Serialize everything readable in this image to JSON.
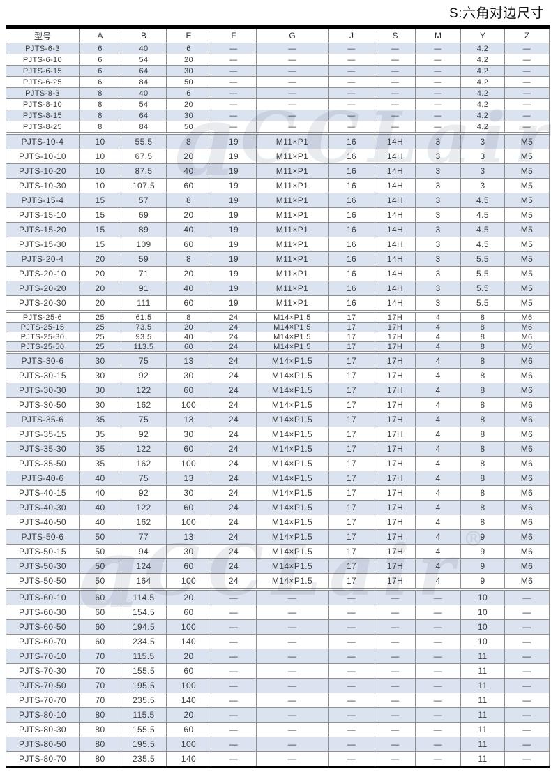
{
  "title": "S:六角对边尺寸",
  "watermark": {
    "glyph": "a",
    "text": "CCLair",
    "reg": "®"
  },
  "colors": {
    "row_stripe": "#dce3f0",
    "grid_border": "#8f8f8f",
    "group_separator": "#000000",
    "text": "#3c3c3c",
    "watermark": "#b6bcc8"
  },
  "table": {
    "columns": [
      {
        "key": "model",
        "label": "型号"
      },
      {
        "key": "A",
        "label": "A"
      },
      {
        "key": "B",
        "label": "B"
      },
      {
        "key": "E",
        "label": "E"
      },
      {
        "key": "F",
        "label": "F"
      },
      {
        "key": "G",
        "label": "G"
      },
      {
        "key": "J",
        "label": "J"
      },
      {
        "key": "S",
        "label": "S"
      },
      {
        "key": "M",
        "label": "M"
      },
      {
        "key": "Y",
        "label": "Y"
      },
      {
        "key": "Z",
        "label": "Z"
      }
    ],
    "groups": [
      {
        "name": "g1",
        "shade_first_row": true,
        "rows": [
          [
            "PJTS-6-3",
            "6",
            "40",
            "6",
            "—",
            "—",
            "—",
            "—",
            "—",
            "4.2",
            "—"
          ],
          [
            "PJTS-6-10",
            "6",
            "54",
            "20",
            "—",
            "—",
            "—",
            "—",
            "—",
            "4.2",
            "—"
          ],
          [
            "PJTS-6-15",
            "6",
            "64",
            "30",
            "—",
            "—",
            "—",
            "—",
            "—",
            "4.2",
            "—"
          ],
          [
            "PJTS-6-25",
            "6",
            "84",
            "50",
            "—",
            "—",
            "—",
            "—",
            "—",
            "4.2",
            "—"
          ],
          [
            "PJTS-8-3",
            "8",
            "40",
            "6",
            "—",
            "—",
            "—",
            "—",
            "—",
            "4.2",
            "—"
          ],
          [
            "PJTS-8-10",
            "8",
            "54",
            "20",
            "—",
            "—",
            "—",
            "—",
            "—",
            "4.2",
            "—"
          ],
          [
            "PJTS-8-15",
            "8",
            "64",
            "30",
            "—",
            "—",
            "—",
            "—",
            "—",
            "4.2",
            "—"
          ],
          [
            "PJTS-8-25",
            "8",
            "84",
            "50",
            "—",
            "—",
            "—",
            "—",
            "—",
            "4.2",
            "—"
          ]
        ]
      },
      {
        "name": "g2",
        "shade_first_row": true,
        "rows": [
          [
            "PJTS-10-4",
            "10",
            "55.5",
            "8",
            "19",
            "M11×P1",
            "16",
            "14H",
            "3",
            "3",
            "M5"
          ],
          [
            "PJTS-10-10",
            "10",
            "67.5",
            "20",
            "19",
            "M11×P1",
            "16",
            "14H",
            "3",
            "3",
            "M5"
          ],
          [
            "PJTS-10-20",
            "10",
            "87.5",
            "40",
            "19",
            "M11×P1",
            "16",
            "14H",
            "3",
            "3",
            "M5"
          ],
          [
            "PJTS-10-30",
            "10",
            "107.5",
            "60",
            "19",
            "M11×P1",
            "16",
            "14H",
            "3",
            "3",
            "M5"
          ],
          [
            "PJTS-15-4",
            "15",
            "57",
            "8",
            "19",
            "M11×P1",
            "16",
            "14H",
            "3",
            "4.5",
            "M5"
          ],
          [
            "PJTS-15-10",
            "15",
            "69",
            "20",
            "19",
            "M11×P1",
            "16",
            "14H",
            "3",
            "4.5",
            "M5"
          ],
          [
            "PJTS-15-20",
            "15",
            "89",
            "40",
            "19",
            "M11×P1",
            "16",
            "14H",
            "3",
            "4.5",
            "M5"
          ],
          [
            "PJTS-15-30",
            "15",
            "109",
            "60",
            "19",
            "M11×P1",
            "16",
            "14H",
            "3",
            "4.5",
            "M5"
          ],
          [
            "PJTS-20-4",
            "20",
            "59",
            "8",
            "19",
            "M11×P1",
            "16",
            "14H",
            "3",
            "5.5",
            "M5"
          ],
          [
            "PJTS-20-10",
            "20",
            "71",
            "20",
            "19",
            "M11×P1",
            "16",
            "14H",
            "3",
            "5.5",
            "M5"
          ],
          [
            "PJTS-20-20",
            "20",
            "91",
            "40",
            "19",
            "M11×P1",
            "16",
            "14H",
            "3",
            "5.5",
            "M5"
          ],
          [
            "PJTS-20-30",
            "20",
            "111",
            "60",
            "19",
            "M11×P1",
            "16",
            "14H",
            "3",
            "5.5",
            "M5"
          ]
        ]
      },
      {
        "name": "g3",
        "shade_first_row": false,
        "rows": [
          [
            "PJTS-25-6",
            "25",
            "61.5",
            "8",
            "24",
            "M14×P1.5",
            "17",
            "17H",
            "4",
            "8",
            "M6"
          ],
          [
            "PJTS-25-15",
            "25",
            "73.5",
            "20",
            "24",
            "M14×P1.5",
            "17",
            "17H",
            "4",
            "8",
            "M6"
          ],
          [
            "PJTS-25-30",
            "25",
            "93.5",
            "40",
            "24",
            "M14×P1.5",
            "17",
            "17H",
            "4",
            "8",
            "M6"
          ],
          [
            "PJTS-25-50",
            "25",
            "113.5",
            "60",
            "24",
            "M14×P1.5",
            "17",
            "17H",
            "4",
            "8",
            "M6"
          ]
        ]
      },
      {
        "name": "g4",
        "shade_first_row": true,
        "rows": [
          [
            "PJTS-30-6",
            "30",
            "75",
            "13",
            "24",
            "M14×P1.5",
            "17",
            "17H",
            "4",
            "8",
            "M6"
          ],
          [
            "PJTS-30-15",
            "30",
            "92",
            "30",
            "24",
            "M14×P1.5",
            "17",
            "17H",
            "4",
            "8",
            "M6"
          ],
          [
            "PJTS-30-30",
            "30",
            "122",
            "60",
            "24",
            "M14×P1.5",
            "17",
            "17H",
            "4",
            "8",
            "M6"
          ],
          [
            "PJTS-30-50",
            "30",
            "162",
            "100",
            "24",
            "M14×P1.5",
            "17",
            "17H",
            "4",
            "8",
            "M6"
          ],
          [
            "PJTS-35-6",
            "35",
            "75",
            "13",
            "24",
            "M14×P1.5",
            "17",
            "17H",
            "4",
            "8",
            "M6"
          ],
          [
            "PJTS-35-15",
            "35",
            "92",
            "30",
            "24",
            "M14×P1.5",
            "17",
            "17H",
            "4",
            "8",
            "M6"
          ],
          [
            "PJTS-35-30",
            "35",
            "122",
            "60",
            "24",
            "M14×P1.5",
            "17",
            "17H",
            "4",
            "8",
            "M6"
          ],
          [
            "PJTS-35-50",
            "35",
            "162",
            "100",
            "24",
            "M14×P1.5",
            "17",
            "17H",
            "4",
            "8",
            "M6"
          ],
          [
            "PJTS-40-6",
            "40",
            "75",
            "13",
            "24",
            "M14×P1.5",
            "17",
            "17H",
            "4",
            "8",
            "M6"
          ],
          [
            "PJTS-40-15",
            "40",
            "92",
            "30",
            "24",
            "M14×P1.5",
            "17",
            "17H",
            "4",
            "8",
            "M6"
          ],
          [
            "PJTS-40-30",
            "40",
            "122",
            "60",
            "24",
            "M14×P1.5",
            "17",
            "17H",
            "4",
            "8",
            "M6"
          ],
          [
            "PJTS-40-50",
            "40",
            "162",
            "100",
            "24",
            "M14×P1.5",
            "17",
            "17H",
            "4",
            "8",
            "M6"
          ],
          [
            "PJTS-50-6",
            "50",
            "77",
            "13",
            "24",
            "M14×P1.5",
            "17",
            "17H",
            "4",
            "9",
            "M6"
          ],
          [
            "PJTS-50-15",
            "50",
            "94",
            "30",
            "24",
            "M14×P1.5",
            "17",
            "17H",
            "4",
            "9",
            "M6"
          ],
          [
            "PJTS-50-30",
            "50",
            "124",
            "60",
            "24",
            "M14×P1.5",
            "17",
            "17H",
            "4",
            "9",
            "M6"
          ],
          [
            "PJTS-50-50",
            "50",
            "164",
            "100",
            "24",
            "M14×P1.5",
            "17",
            "17H",
            "4",
            "9",
            "M6"
          ]
        ]
      },
      {
        "name": "g5",
        "shade_first_row": true,
        "rows": [
          [
            "PJTS-60-10",
            "60",
            "114.5",
            "20",
            "—",
            "—",
            "—",
            "—",
            "—",
            "10",
            "—"
          ],
          [
            "PJTS-60-30",
            "60",
            "154.5",
            "60",
            "—",
            "—",
            "—",
            "—",
            "—",
            "10",
            "—"
          ],
          [
            "PJTS-60-50",
            "60",
            "194.5",
            "100",
            "—",
            "—",
            "—",
            "—",
            "—",
            "10",
            "—"
          ],
          [
            "PJTS-60-70",
            "60",
            "234.5",
            "140",
            "—",
            "—",
            "—",
            "—",
            "—",
            "10",
            "—"
          ],
          [
            "PJTS-70-10",
            "70",
            "115.5",
            "20",
            "—",
            "—",
            "—",
            "—",
            "—",
            "11",
            "—"
          ],
          [
            "PJTS-70-30",
            "70",
            "155.5",
            "60",
            "—",
            "—",
            "—",
            "—",
            "—",
            "11",
            "—"
          ],
          [
            "PJTS-70-50",
            "70",
            "195.5",
            "100",
            "—",
            "—",
            "—",
            "—",
            "—",
            "11",
            "—"
          ],
          [
            "PJTS-70-70",
            "70",
            "235.5",
            "140",
            "—",
            "—",
            "—",
            "—",
            "—",
            "11",
            "—"
          ],
          [
            "PJTS-80-10",
            "80",
            "115.5",
            "20",
            "—",
            "—",
            "—",
            "—",
            "—",
            "11",
            "—"
          ],
          [
            "PJTS-80-30",
            "80",
            "155.5",
            "60",
            "—",
            "—",
            "—",
            "—",
            "—",
            "11",
            "—"
          ],
          [
            "PJTS-80-50",
            "80",
            "195.5",
            "100",
            "—",
            "—",
            "—",
            "—",
            "—",
            "11",
            "—"
          ],
          [
            "PJTS-80-70",
            "80",
            "235.5",
            "140",
            "—",
            "—",
            "—",
            "—",
            "—",
            "11",
            "—"
          ]
        ]
      }
    ]
  }
}
